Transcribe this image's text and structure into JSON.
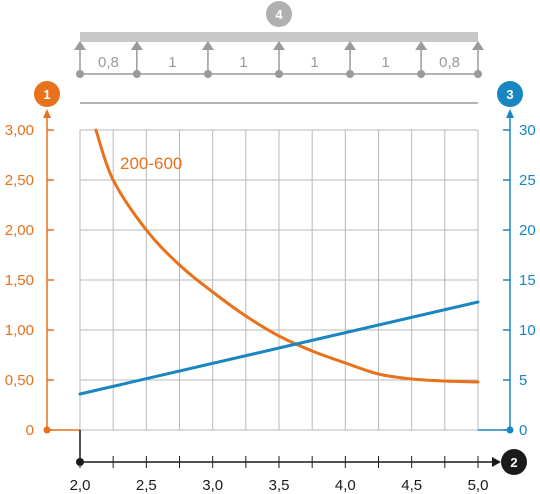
{
  "chart_data": {
    "type": "line",
    "x_axis": {
      "marker": "2",
      "min": 2.0,
      "max": 5.0,
      "tick_values": [
        2.0,
        2.5,
        3.0,
        3.5,
        4.0,
        4.5,
        5.0
      ],
      "tick_labels": [
        "2,0",
        "2,5",
        "3,0",
        "3,5",
        "4,0",
        "4,5",
        "5,0"
      ],
      "minor_step": 0.25
    },
    "y_left": {
      "marker": "1",
      "min": 0,
      "max": 3.0,
      "tick_values": [
        0,
        0.5,
        1.0,
        1.5,
        2.0,
        2.5,
        3.0
      ],
      "tick_labels": [
        "0",
        "0,50",
        "1,00",
        "1,50",
        "2,00",
        "2,50",
        "3,00"
      ],
      "color": "#e8711c"
    },
    "y_right": {
      "marker": "3",
      "min": 0,
      "max": 30,
      "tick_values": [
        0,
        5,
        10,
        15,
        20,
        25,
        30
      ],
      "tick_labels": [
        "0",
        "5",
        "10",
        "15",
        "20",
        "25",
        "30"
      ],
      "color": "#1a86c1"
    },
    "series": [
      {
        "name": "200-600",
        "axis": "left",
        "color": "#e8711c",
        "x": [
          2.12,
          2.25,
          2.5,
          2.75,
          3.0,
          3.25,
          3.5,
          3.75,
          4.0,
          4.25,
          4.5,
          4.75,
          5.0
        ],
        "y": [
          3.0,
          2.5,
          2.0,
          1.65,
          1.38,
          1.14,
          0.94,
          0.79,
          0.67,
          0.56,
          0.51,
          0.49,
          0.48
        ]
      },
      {
        "axis": "right",
        "color": "#1a86c1",
        "x": [
          2.0,
          5.0
        ],
        "y": [
          3.6,
          12.8
        ]
      }
    ],
    "span_diagram": {
      "marker": "4",
      "labels": [
        "0,8",
        "1",
        "1",
        "1",
        "1",
        "0,8"
      ],
      "color": "#9a9a9a"
    },
    "grid": true
  }
}
